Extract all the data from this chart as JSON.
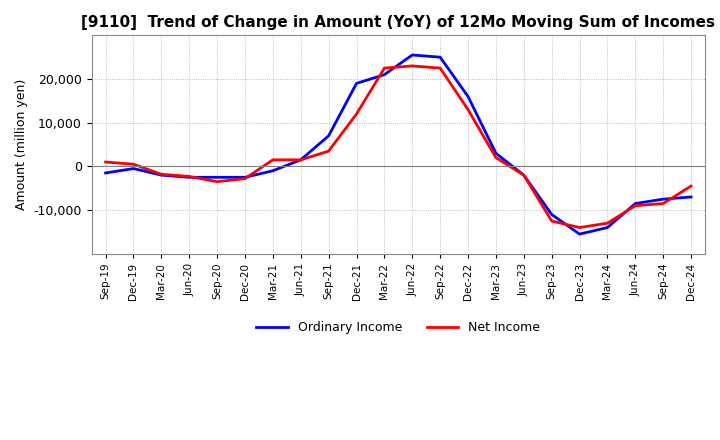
{
  "title": "[9110]  Trend of Change in Amount (YoY) of 12Mo Moving Sum of Incomes",
  "ylabel": "Amount (million yen)",
  "x_labels": [
    "Sep-19",
    "Dec-19",
    "Mar-20",
    "Jun-20",
    "Sep-20",
    "Dec-20",
    "Mar-21",
    "Jun-21",
    "Sep-21",
    "Dec-21",
    "Mar-22",
    "Jun-22",
    "Sep-22",
    "Dec-22",
    "Mar-23",
    "Jun-23",
    "Sep-23",
    "Dec-23",
    "Mar-24",
    "Jun-24",
    "Sep-24",
    "Dec-24"
  ],
  "ordinary_income": [
    -1500,
    -500,
    -2000,
    -2500,
    -2500,
    -2500,
    -1000,
    1500,
    7000,
    19000,
    21000,
    25500,
    25000,
    16000,
    3000,
    -2000,
    -11000,
    -15500,
    -14000,
    -8500,
    -7500,
    -7000
  ],
  "net_income": [
    1000,
    500,
    -1800,
    -2300,
    -3500,
    -2800,
    1500,
    1500,
    3500,
    12000,
    22500,
    23000,
    22500,
    13000,
    2000,
    -2000,
    -12500,
    -14000,
    -13000,
    -9000,
    -8500,
    -4500
  ],
  "ordinary_color": "#0000FF",
  "net_color": "#FF0000",
  "ylim_min": -20000,
  "ylim_max": 30000,
  "yticks": [
    -10000,
    0,
    10000,
    20000
  ],
  "background_color": "#FFFFFF",
  "grid_color": "#AAAAAA",
  "title_fontsize": 11,
  "legend_labels": [
    "Ordinary Income",
    "Net Income"
  ]
}
